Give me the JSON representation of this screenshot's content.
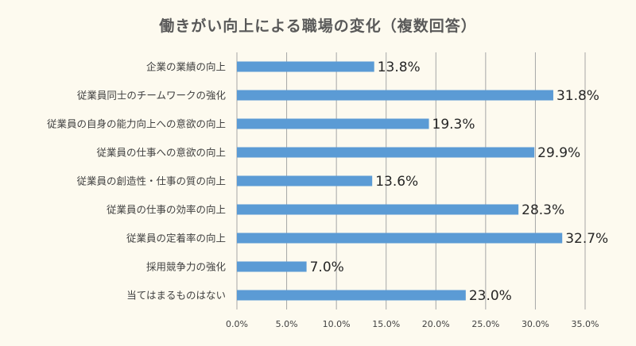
{
  "chart_data": {
    "type": "bar",
    "orientation": "horizontal",
    "title": "働きがい向上による職場の変化（複数回答）",
    "categories": [
      "企業の業績の向上",
      "従業員同士のチームワークの強化",
      "従業員の自身の能力向上への意欲の向上",
      "従業員の仕事への意欲の向上",
      "従業員の創造性・仕事の質の向上",
      "従業員の仕事の効率の向上",
      "従業員の定着率の向上",
      "採用競争力の強化",
      "当てはまるものはない"
    ],
    "values": [
      13.8,
      31.8,
      19.3,
      29.9,
      13.6,
      28.3,
      32.7,
      7.0,
      23.0
    ],
    "data_labels": [
      "13.8%",
      "31.8%",
      "19.3%",
      "29.9%",
      "13.6%",
      "28.3%",
      "32.7%",
      "7.0%",
      "23.0%"
    ],
    "xlim": [
      0,
      35
    ],
    "x_ticks": [
      0,
      5,
      10,
      15,
      20,
      25,
      30,
      35
    ],
    "x_tick_labels": [
      "0.0%",
      "5.0%",
      "10.0%",
      "15.0%",
      "20.0%",
      "25.0%",
      "30.0%",
      "35.0%"
    ],
    "grid": "vertical",
    "legend": "none",
    "colors": {
      "bar": "#5b9bd5",
      "grid": "#a6a6a6",
      "background": "#fdfaef"
    }
  }
}
